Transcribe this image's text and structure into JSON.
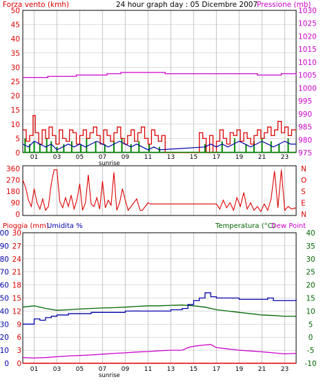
{
  "header": {
    "left_label": "Forza vento (kmh)",
    "title": "24 hour graph day : 05 Dicembre 2007",
    "right_label": "Pressione (mb)"
  },
  "panel3_labels": {
    "rain_label": "Pioggia (mm)",
    "humidity_label": "Umidita %",
    "temperature_label": "Temperatura (°C)",
    "dewpoint_label": "Dew Point"
  },
  "colors": {
    "wind_gust": "#dd0000",
    "wind_avg": "#008800",
    "wind_blue": "#0000aa",
    "pressure": "#cc00cc",
    "direction": "#dd0000",
    "humidity": "#0000aa",
    "temperature": "#006600",
    "dewpoint": "#cc00cc",
    "rain": "#dd0000",
    "grid_vertical": "#cccccc",
    "grid_horizontal": "#bbbbbb"
  },
  "x_axis": {
    "range": [
      0,
      24
    ],
    "ticks": [
      {
        "hour": 1,
        "label": "01"
      },
      {
        "hour": 3,
        "label": "03"
      },
      {
        "hour": 5,
        "label": "05"
      },
      {
        "hour": 7,
        "label": "07"
      },
      {
        "hour": 9,
        "label": "09"
      },
      {
        "hour": 11,
        "label": "11"
      },
      {
        "hour": 13,
        "label": "13"
      },
      {
        "hour": 15,
        "label": "15"
      },
      {
        "hour": 17,
        "label": "17"
      },
      {
        "hour": 19,
        "label": "19"
      },
      {
        "hour": 21,
        "label": "21"
      },
      {
        "hour": 23,
        "label": "23"
      }
    ],
    "sunrise_label": "sunrise",
    "sunrise_hour": 7.6
  },
  "chart_data": [
    {
      "type": "line",
      "title": "24 hour graph day : 05 Dicembre 2007",
      "x_range": [
        0,
        24
      ],
      "left_axis": {
        "label": "Forza vento (kmh)",
        "ticks": [
          "0",
          "5",
          "10",
          "15",
          "20",
          "25",
          "30",
          "35",
          "40",
          "45",
          "50"
        ],
        "ylim": [
          0,
          50
        ]
      },
      "right_axis": {
        "label": "Pressione (mb)",
        "ticks": [
          "975",
          "980",
          "985",
          "990",
          "995",
          "1000",
          "1005",
          "1010",
          "1015",
          "1020",
          "1025",
          "1030"
        ],
        "ylim": [
          975,
          1030
        ]
      },
      "series": [
        {
          "axis": "right",
          "style": "step",
          "x": [
            0,
            2.1,
            2.2,
            4.6,
            4.7,
            7.3,
            7.4,
            8.5,
            8.6,
            12.4,
            12.5,
            17.5,
            17.6,
            18.8,
            18.9,
            20.4,
            20.6,
            22.5,
            22.7,
            24
          ],
          "values": [
            1004,
            1004,
            1004.5,
            1004.5,
            1005,
            1005,
            1005.5,
            1005.5,
            1006,
            1006,
            1005.5,
            1005.5,
            1005.5,
            1005.5,
            1005.5,
            1005.5,
            1005,
            1005,
            1005.5,
            1005
          ]
        },
        {
          "axis": "left",
          "style": "step",
          "x": [
            0,
            0.3,
            0.6,
            0.9,
            1.1,
            1.4,
            1.7,
            2.0,
            2.3,
            2.6,
            2.9,
            3.2,
            3.5,
            3.8,
            4.1,
            4.4,
            4.7,
            5.0,
            5.3,
            5.6,
            5.9,
            6.2,
            6.5,
            6.8,
            7.1,
            7.4,
            7.7,
            8.0,
            8.3,
            8.6,
            8.9,
            9.2,
            9.5,
            9.8,
            10.1,
            10.4,
            10.7,
            11.0,
            11.3,
            11.6,
            11.9,
            12.2,
            12.5,
            13.0,
            14.0,
            15.0,
            15.5,
            15.8,
            16.1,
            16.4,
            16.7,
            17.0,
            17.3,
            17.6,
            17.9,
            18.2,
            18.5,
            18.8,
            19.1,
            19.4,
            19.7,
            20.0,
            20.3,
            20.6,
            20.9,
            21.2,
            21.5,
            21.8,
            22.1,
            22.4,
            22.7,
            23.0,
            23.3,
            23.6
          ],
          "values": [
            8,
            4,
            6,
            13,
            7,
            3,
            8,
            5,
            9,
            6,
            3,
            8,
            5,
            4,
            8,
            7,
            3,
            6,
            8,
            5,
            7,
            9,
            6,
            3,
            8,
            6,
            4,
            7,
            9,
            5,
            3,
            6,
            8,
            4,
            7,
            9,
            5,
            3,
            8,
            6,
            4,
            6,
            0,
            0,
            0,
            0,
            7,
            5,
            0,
            6,
            0,
            4,
            8,
            5,
            3,
            7,
            6,
            8,
            4,
            7,
            5,
            3,
            6,
            8,
            5,
            7,
            9,
            6,
            8,
            11,
            7,
            9,
            6,
            8
          ]
        },
        {
          "axis": "left",
          "style": "bars",
          "x": [
            0.2,
            0.6,
            1.0,
            1.5,
            2.1,
            2.5,
            3.0,
            3.6,
            4.3,
            5.1,
            5.6,
            6.4,
            7.2,
            8.0,
            8.7,
            9.5,
            10.2,
            11.1,
            12.0,
            16.0,
            17.5,
            18.6,
            19.6,
            20.3,
            21.0,
            21.8,
            22.5,
            23.3
          ],
          "values": [
            5,
            3,
            4,
            3,
            5,
            4,
            2,
            3,
            4,
            3,
            5,
            4,
            3,
            4,
            5,
            3,
            4,
            3,
            2,
            3,
            4,
            5,
            3,
            4,
            5,
            4,
            3,
            5
          ]
        },
        {
          "axis": "left",
          "style": "line",
          "x": [
            0,
            0.5,
            1.0,
            1.5,
            2.0,
            2.5,
            3.0,
            3.5,
            4.0,
            4.5,
            5.0,
            5.5,
            6.0,
            6.5,
            7.0,
            7.5,
            8.0,
            8.5,
            9.0,
            9.5,
            10.0,
            10.5,
            11.0,
            11.5,
            12.0,
            16.0,
            16.5,
            17.0,
            17.5,
            18.0,
            18.5,
            19.0,
            19.5,
            20.0,
            20.5,
            21.0,
            21.5,
            22.0,
            22.5,
            23.0,
            23.5,
            24.0
          ],
          "values": [
            3,
            2,
            4,
            3,
            2,
            3,
            1,
            2,
            3,
            2,
            3,
            2,
            3,
            4,
            3,
            2,
            3,
            4,
            3,
            2,
            3,
            2,
            1,
            2,
            1,
            2,
            3,
            2,
            3,
            2,
            3,
            4,
            3,
            2,
            3,
            4,
            3,
            2,
            3,
            4,
            3,
            3
          ]
        }
      ]
    },
    {
      "type": "line",
      "title": "",
      "x_range": [
        0,
        24
      ],
      "left_axis": {
        "label": "",
        "ticks": [
          "0",
          "90",
          "180",
          "270",
          "360"
        ],
        "ylim": [
          0,
          360
        ]
      },
      "right_axis": {
        "label": "",
        "ticks": [
          "N",
          "E",
          "S",
          "O",
          "N"
        ]
      },
      "series": [
        {
          "axis": "left",
          "style": "line",
          "x": [
            0,
            0.25,
            0.5,
            0.75,
            1.0,
            1.25,
            1.5,
            1.75,
            2.0,
            2.25,
            2.5,
            2.75,
            3.0,
            3.25,
            3.5,
            3.75,
            4.0,
            4.25,
            4.5,
            4.75,
            5.0,
            5.25,
            5.5,
            5.75,
            6.0,
            6.25,
            6.5,
            6.75,
            7.0,
            7.25,
            7.5,
            7.75,
            8.0,
            8.25,
            8.5,
            8.75,
            9.0,
            9.25,
            9.5,
            9.75,
            10.0,
            10.3,
            10.5,
            11.0,
            11.2,
            11.5,
            17.0,
            17.3,
            17.6,
            17.9,
            18.2,
            18.5,
            18.8,
            19.1,
            19.4,
            19.7,
            20.0,
            20.3,
            20.6,
            20.9,
            21.2,
            21.5,
            21.8,
            22.1,
            22.4,
            22.7,
            23.0,
            23.3,
            23.6,
            24.0
          ],
          "values": [
            270,
            210,
            110,
            60,
            200,
            90,
            40,
            120,
            30,
            60,
            240,
            350,
            350,
            100,
            50,
            130,
            60,
            150,
            40,
            110,
            240,
            30,
            90,
            310,
            80,
            60,
            130,
            40,
            260,
            50,
            110,
            70,
            330,
            30,
            90,
            200,
            110,
            30,
            60,
            90,
            120,
            30,
            30,
            90,
            80,
            80,
            80,
            40,
            110,
            50,
            90,
            30,
            130,
            60,
            170,
            40,
            90,
            30,
            60,
            20,
            80,
            30,
            120,
            340,
            50,
            350,
            30,
            60,
            40,
            50
          ]
        }
      ]
    },
    {
      "type": "line",
      "title": "",
      "x_range": [
        0,
        24
      ],
      "left_axis_rain": {
        "label": "Pioggia (mm)",
        "ticks": [
          "0",
          "3",
          "6",
          "9",
          "12",
          "15",
          "18",
          "21",
          "24",
          "27",
          "30"
        ],
        "ylim": [
          0,
          30
        ]
      },
      "left_axis_humidity": {
        "label": "Umidita %",
        "ticks": [
          "0",
          "10",
          "20",
          "30",
          "40",
          "50",
          "60",
          "70",
          "80",
          "90",
          "100"
        ],
        "ylim": [
          0,
          100
        ]
      },
      "right_axis": {
        "label": "Temperatura (°C)",
        "ticks": [
          "-10",
          "-5",
          "0",
          "5",
          "10",
          "15",
          "20",
          "25",
          "30",
          "35",
          "40"
        ],
        "ylim": [
          -10,
          40
        ]
      },
      "series": [
        {
          "name": "Umidita %",
          "axis": "humidity",
          "x": [
            0,
            0.5,
            1.0,
            1.5,
            2.0,
            2.5,
            3.0,
            3.5,
            4.0,
            5.0,
            6.0,
            7.0,
            8.0,
            9.0,
            10.0,
            11.0,
            12.0,
            13.0,
            14.0,
            14.5,
            15.0,
            15.5,
            16.0,
            16.5,
            17.0,
            18.0,
            19.0,
            20.0,
            21.0,
            21.5,
            22.0,
            23.0,
            24.0
          ],
          "values": [
            30,
            30,
            34,
            33,
            35,
            36,
            37,
            37,
            38,
            38,
            39,
            39,
            39,
            40,
            40,
            40,
            40,
            41,
            42,
            45,
            48,
            50,
            54,
            51,
            50,
            50,
            49,
            49,
            49,
            50,
            48,
            48,
            49
          ]
        },
        {
          "name": "Temperatura (°C)",
          "axis": "temperature",
          "x": [
            0,
            1.0,
            2.0,
            3.0,
            4.0,
            5.0,
            6.0,
            7.0,
            8.0,
            9.0,
            10.0,
            11.0,
            12.0,
            13.0,
            14.0,
            15.0,
            16.0,
            17.0,
            18.0,
            19.0,
            20.0,
            21.0,
            22.0,
            23.0,
            24.0
          ],
          "values": [
            11.5,
            12.0,
            11.0,
            10.3,
            10.5,
            10.8,
            11.0,
            11.2,
            11.3,
            11.5,
            11.8,
            12.0,
            12.0,
            12.2,
            12.3,
            12.0,
            11.5,
            10.5,
            10.0,
            9.5,
            9.0,
            8.5,
            8.3,
            8.0,
            8.0
          ]
        },
        {
          "name": "Dew Point",
          "axis": "temperature",
          "x": [
            0,
            1.0,
            2.0,
            3.0,
            4.0,
            5.0,
            6.0,
            7.0,
            8.0,
            9.0,
            10.0,
            11.0,
            12.0,
            13.0,
            14.0,
            14.5,
            15.0,
            15.5,
            16.0,
            16.5,
            17.0,
            18.0,
            19.0,
            20.0,
            21.0,
            22.0,
            23.0,
            24.0
          ],
          "values": [
            -7.8,
            -8.0,
            -7.8,
            -7.5,
            -7.2,
            -7.0,
            -6.8,
            -6.5,
            -6.2,
            -6.0,
            -5.7,
            -5.5,
            -5.2,
            -5.0,
            -5.0,
            -4.0,
            -3.5,
            -3.2,
            -3.0,
            -2.8,
            -4.0,
            -4.5,
            -5.0,
            -5.3,
            -5.6,
            -6.0,
            -6.4,
            -6.2
          ]
        },
        {
          "name": "Pioggia (mm)",
          "axis": "rain",
          "x": [
            0,
            24
          ],
          "values": [
            0,
            0
          ]
        }
      ]
    }
  ]
}
